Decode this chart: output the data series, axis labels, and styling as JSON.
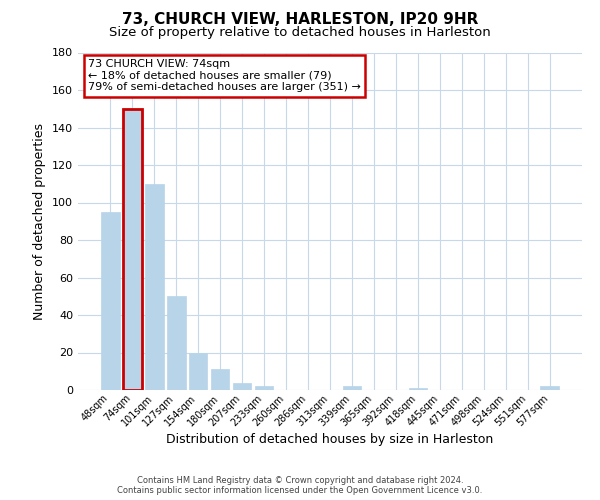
{
  "title": "73, CHURCH VIEW, HARLESTON, IP20 9HR",
  "subtitle": "Size of property relative to detached houses in Harleston",
  "xlabel": "Distribution of detached houses by size in Harleston",
  "ylabel": "Number of detached properties",
  "bar_labels": [
    "48sqm",
    "74sqm",
    "101sqm",
    "127sqm",
    "154sqm",
    "180sqm",
    "207sqm",
    "233sqm",
    "260sqm",
    "286sqm",
    "313sqm",
    "339sqm",
    "365sqm",
    "392sqm",
    "418sqm",
    "445sqm",
    "471sqm",
    "498sqm",
    "524sqm",
    "551sqm",
    "577sqm"
  ],
  "bar_values": [
    95,
    150,
    110,
    50,
    20,
    11,
    4,
    2,
    0,
    0,
    0,
    2,
    0,
    0,
    1,
    0,
    0,
    0,
    0,
    0,
    2
  ],
  "bar_color": "#b8d4e8",
  "highlight_bar_index": 1,
  "highlight_bar_edge_color": "#cc0000",
  "ylim": [
    0,
    180
  ],
  "yticks": [
    0,
    20,
    40,
    60,
    80,
    100,
    120,
    140,
    160,
    180
  ],
  "annotation_title": "73 CHURCH VIEW: 74sqm",
  "annotation_line1": "← 18% of detached houses are smaller (79)",
  "annotation_line2": "79% of semi-detached houses are larger (351) →",
  "annotation_box_color": "#ffffff",
  "annotation_box_edge_color": "#cc0000",
  "footer_line1": "Contains HM Land Registry data © Crown copyright and database right 2024.",
  "footer_line2": "Contains public sector information licensed under the Open Government Licence v3.0.",
  "background_color": "#ffffff",
  "grid_color": "#c8d8e8",
  "title_fontsize": 11,
  "subtitle_fontsize": 9.5
}
